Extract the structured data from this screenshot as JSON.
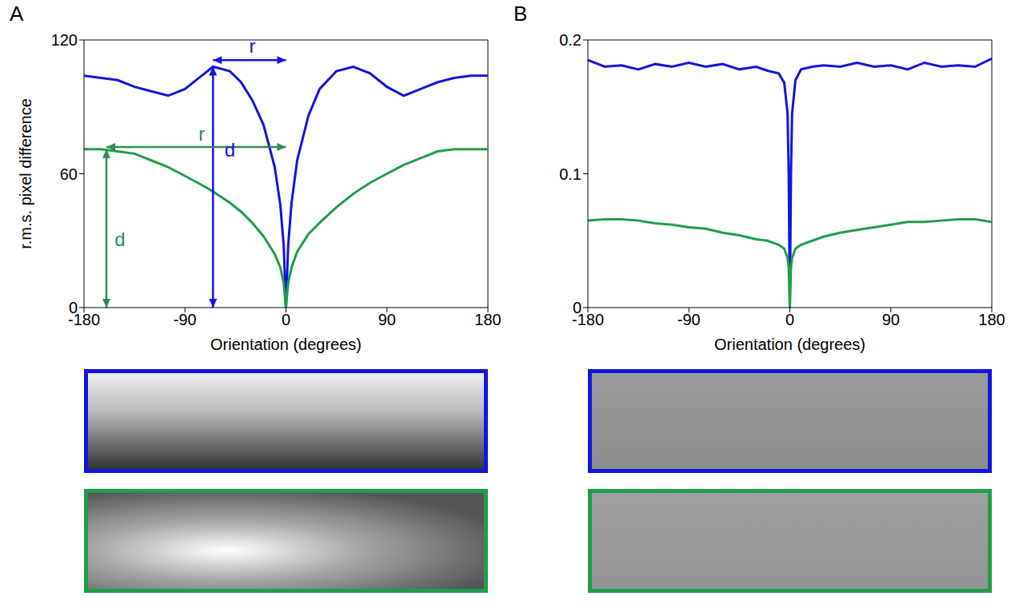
{
  "chart_data": [
    {
      "panel": "A",
      "type": "line",
      "x_label": "Orientation (degrees)",
      "y_label": "r.m.s. pixel difference",
      "xlim": [
        -180,
        180
      ],
      "xticks": [
        -180,
        -90,
        0,
        90,
        180
      ],
      "ylim": [
        0,
        120
      ],
      "yticks": [
        0,
        60,
        120
      ],
      "x": [
        -180,
        -165,
        -150,
        -135,
        -120,
        -105,
        -90,
        -75,
        -65,
        -50,
        -40,
        -30,
        -20,
        -10,
        -5,
        -2,
        0,
        2,
        5,
        10,
        20,
        30,
        45,
        60,
        75,
        90,
        105,
        120,
        135,
        150,
        165,
        180
      ],
      "series": [
        {
          "color": "#1414e0",
          "values": [
            104,
            103,
            102,
            99,
            97,
            95,
            98,
            104,
            108,
            106,
            101,
            93,
            82,
            63,
            46,
            28,
            0,
            28,
            47,
            66,
            86,
            98,
            106,
            108,
            105,
            99,
            95,
            98,
            101,
            103,
            104,
            104
          ]
        },
        {
          "color": "#1f9e4a",
          "values": [
            71,
            71,
            70,
            69,
            66,
            63,
            59,
            55,
            52,
            47,
            43,
            38,
            32,
            24,
            18,
            11,
            0,
            11,
            18,
            25,
            33,
            38,
            45,
            51,
            56,
            60,
            64,
            67,
            70,
            71,
            71,
            71
          ]
        }
      ],
      "annotations": [
        {
          "text": "r",
          "color": "#1414e0",
          "from": [
            -65,
            111
          ],
          "to": [
            0,
            111
          ],
          "label_at": [
            -30,
            116.5
          ]
        },
        {
          "text": "d",
          "color": "#1414e0",
          "from": [
            -65,
            0
          ],
          "to": [
            -65,
            108
          ],
          "label_at": [
            -50,
            70
          ]
        },
        {
          "text": "r",
          "color": "#2e8b57",
          "from": [
            -160,
            72
          ],
          "to": [
            0,
            72
          ],
          "label_at": [
            -75,
            77
          ]
        },
        {
          "text": "d",
          "color": "#2e8b57",
          "from": [
            -160,
            0
          ],
          "to": [
            -160,
            71
          ],
          "label_at": [
            -148,
            30
          ]
        }
      ]
    },
    {
      "panel": "B",
      "type": "line",
      "x_label": "Orientation (degrees)",
      "xlim": [
        -180,
        180
      ],
      "xticks": [
        -180,
        -90,
        0,
        90,
        180
      ],
      "ylim": [
        0,
        0.2
      ],
      "yticks": [
        0,
        0.1,
        0.2
      ],
      "x": [
        -180,
        -165,
        -150,
        -135,
        -120,
        -105,
        -90,
        -75,
        -60,
        -45,
        -30,
        -20,
        -10,
        -5,
        -2,
        -1,
        0,
        1,
        2,
        5,
        10,
        20,
        30,
        45,
        60,
        75,
        90,
        105,
        120,
        135,
        150,
        165,
        180
      ],
      "series": [
        {
          "color": "#1414e0",
          "values": [
            0.185,
            0.18,
            0.181,
            0.178,
            0.182,
            0.18,
            0.183,
            0.18,
            0.182,
            0.178,
            0.18,
            0.177,
            0.175,
            0.168,
            0.145,
            0.1,
            0,
            0.1,
            0.145,
            0.17,
            0.178,
            0.18,
            0.181,
            0.18,
            0.183,
            0.18,
            0.181,
            0.178,
            0.183,
            0.18,
            0.181,
            0.18,
            0.186
          ]
        },
        {
          "color": "#1f9e4a",
          "values": [
            0.065,
            0.066,
            0.066,
            0.065,
            0.063,
            0.062,
            0.06,
            0.059,
            0.056,
            0.054,
            0.051,
            0.05,
            0.047,
            0.044,
            0.037,
            0.03,
            0,
            0.03,
            0.037,
            0.044,
            0.047,
            0.05,
            0.053,
            0.056,
            0.058,
            0.06,
            0.062,
            0.064,
            0.064,
            0.065,
            0.066,
            0.066,
            0.064
          ]
        }
      ]
    }
  ]
}
